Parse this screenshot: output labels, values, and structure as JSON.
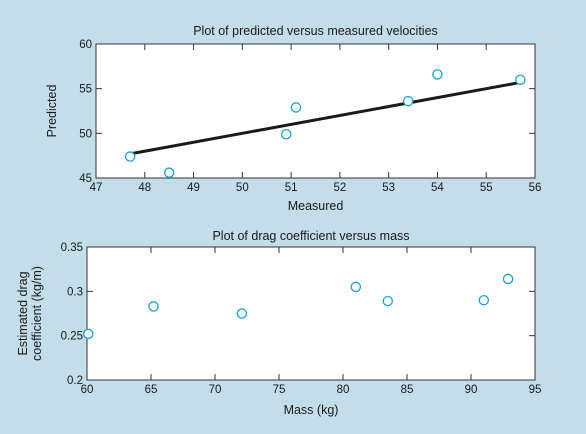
{
  "colors": {
    "background": "#c3ddea",
    "plot_area": "#ffffff",
    "axis": "#333333",
    "marker_stroke": "#1aa1d4",
    "fit_line": "#1a1a1a"
  },
  "chart_data": [
    {
      "type": "scatter",
      "title": "Plot of predicted versus measured velocities",
      "xlabel": "Measured",
      "ylabel": "Predicted",
      "xlim": [
        47,
        56
      ],
      "ylim": [
        45,
        60
      ],
      "xticks": [
        47,
        48,
        49,
        50,
        51,
        52,
        53,
        54,
        55,
        56
      ],
      "yticks": [
        45,
        50,
        55,
        60
      ],
      "grid": false,
      "series": [
        {
          "x": [
            47.7,
            48.5,
            50.9,
            51.1,
            53.4,
            54.0,
            55.7
          ],
          "y": [
            47.4,
            45.6,
            49.9,
            52.9,
            53.6,
            56.6,
            56.0
          ],
          "marker": "circle"
        }
      ],
      "fit_line": {
        "x": [
          47.7,
          55.7
        ],
        "y": [
          47.7,
          55.7
        ]
      }
    },
    {
      "type": "scatter",
      "title": "Plot of drag coefficient versus mass",
      "xlabel": "Mass (kg)",
      "ylabel_lines": [
        "Estimated drag",
        "coefficient (kg/m)"
      ],
      "xlim": [
        60,
        95
      ],
      "ylim": [
        0.2,
        0.35
      ],
      "xticks": [
        60,
        65,
        70,
        75,
        80,
        85,
        90,
        95
      ],
      "yticks": [
        0.2,
        0.25,
        0.3,
        0.35
      ],
      "ytick_labels": [
        "0.2",
        "0.25",
        "0.3",
        "0.35"
      ],
      "grid": false,
      "series": [
        {
          "x": [
            60.1,
            65.2,
            72.1,
            81.0,
            83.5,
            91.0,
            92.9
          ],
          "y": [
            0.252,
            0.283,
            0.275,
            0.305,
            0.289,
            0.29,
            0.314
          ],
          "marker": "circle"
        }
      ]
    }
  ]
}
